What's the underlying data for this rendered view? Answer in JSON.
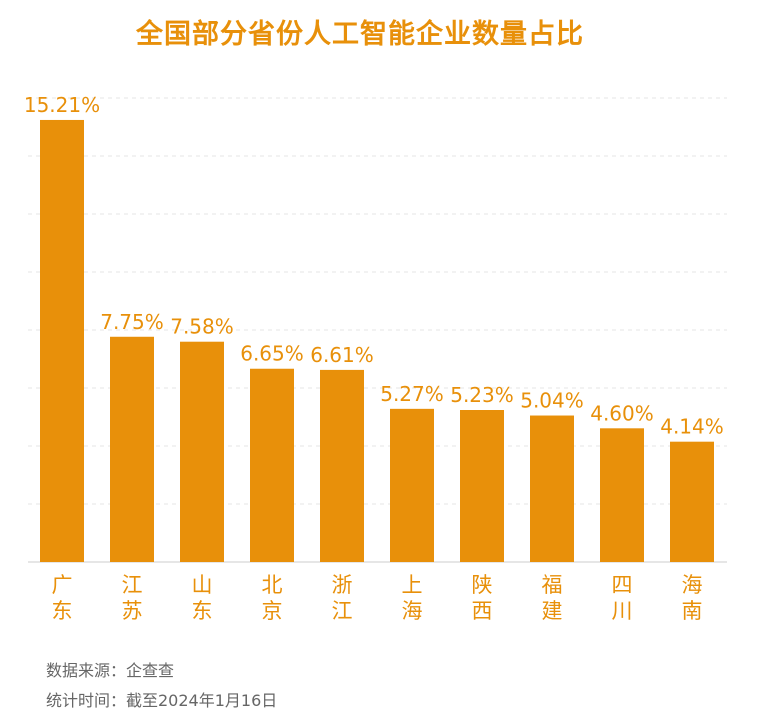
{
  "chart_data": {
    "type": "bar",
    "title": "全国部分省份人工智能企业数量占比",
    "categories": [
      "广东",
      "江苏",
      "山东",
      "北京",
      "浙江",
      "上海",
      "陕西",
      "福建",
      "四川",
      "海南"
    ],
    "values": [
      15.21,
      7.75,
      7.58,
      6.65,
      6.61,
      5.27,
      5.23,
      5.04,
      4.6,
      4.14
    ],
    "value_labels": [
      "15.21%",
      "7.75%",
      "7.58%",
      "6.65%",
      "6.61%",
      "5.27%",
      "5.23%",
      "5.04%",
      "4.60%",
      "4.14%"
    ],
    "ylim": [
      0,
      16
    ],
    "grid": "dashed horizontal",
    "bar_color": "#E8900A"
  },
  "footer": {
    "source": "数据来源：企查查",
    "time": "统计时间：截至2024年1月16日"
  }
}
